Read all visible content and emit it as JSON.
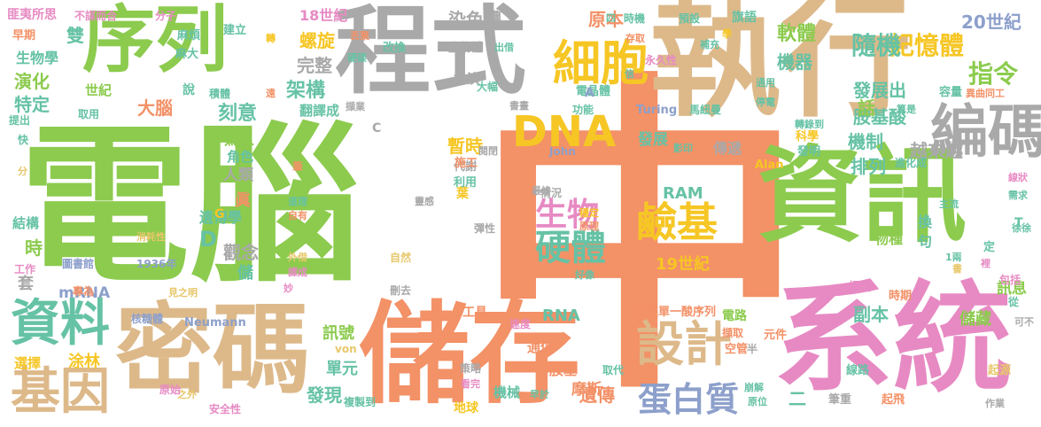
{
  "palette": {
    "green": "#8ccb4e",
    "grey": "#a9a9a9",
    "tan": "#ddb98a",
    "orange": "#f39167",
    "pink": "#e78ac3",
    "yellow": "#f6c624",
    "teal": "#66c2a5",
    "blue": "#8da0cb",
    "lime": "#b5d56a",
    "gold": "#e7c76a"
  },
  "words": [
    {
      "text": "中",
      "color": "orange"
    },
    {
      "text": "電腦",
      "color": "green"
    },
    {
      "text": "執行",
      "color": "tan"
    },
    {
      "text": "程式",
      "color": "grey"
    },
    {
      "text": "序列",
      "color": "green"
    },
    {
      "text": "資訊",
      "color": "green"
    },
    {
      "text": "系統",
      "color": "pink"
    },
    {
      "text": "儲存",
      "color": "orange"
    },
    {
      "text": "密碼",
      "color": "tan"
    },
    {
      "text": "細胞",
      "color": "yellow"
    },
    {
      "text": "編碼",
      "color": "grey"
    },
    {
      "text": "DNA",
      "color": "yellow"
    },
    {
      "text": "資料",
      "color": "teal"
    },
    {
      "text": "基因",
      "color": "tan"
    },
    {
      "text": "設計",
      "color": "tan"
    },
    {
      "text": "記憶體",
      "color": "yellow"
    },
    {
      "text": "生物",
      "color": "pink"
    },
    {
      "text": "鹼基",
      "color": "yellow"
    },
    {
      "text": "硬體",
      "color": "teal"
    },
    {
      "text": "RAM",
      "color": "teal"
    },
    {
      "text": "19世紀",
      "color": "yellow"
    },
    {
      "text": "蛋白質",
      "color": "blue"
    },
    {
      "text": "遺傳",
      "color": "orange"
    },
    {
      "text": "軟體",
      "color": "green"
    },
    {
      "text": "指令",
      "color": "green"
    },
    {
      "text": "隨機",
      "color": "teal"
    },
    {
      "text": "20世紀",
      "color": "blue"
    },
    {
      "text": "螺旋",
      "color": "yellow"
    },
    {
      "text": "架構",
      "color": "teal"
    },
    {
      "text": "完整",
      "color": "grey"
    },
    {
      "text": "染色體",
      "color": "grey"
    },
    {
      "text": "原本",
      "color": "orange"
    },
    {
      "text": "機器",
      "color": "teal"
    },
    {
      "text": "發展出",
      "color": "teal"
    },
    {
      "text": "胺基酸",
      "color": "teal"
    },
    {
      "text": "機制",
      "color": "teal"
    },
    {
      "text": "排列",
      "color": "teal"
    },
    {
      "text": "越來越",
      "color": "grey"
    },
    {
      "text": "發展",
      "color": "teal"
    },
    {
      "text": "暫時",
      "color": "yellow"
    },
    {
      "text": "刻意",
      "color": "teal"
    },
    {
      "text": "大腦",
      "color": "orange"
    },
    {
      "text": "驚人",
      "color": "green"
    },
    {
      "text": "人類",
      "color": "grey"
    },
    {
      "text": "觀念",
      "color": "grey"
    },
    {
      "text": "遺傳學",
      "color": "teal"
    },
    {
      "text": "演化",
      "color": "green"
    },
    {
      "text": "特定",
      "color": "teal"
    },
    {
      "text": "雙",
      "color": "teal"
    },
    {
      "text": "生物學",
      "color": "teal"
    },
    {
      "text": "世紀",
      "color": "green"
    },
    {
      "text": "18世紀",
      "color": "pink"
    },
    {
      "text": "副本",
      "color": "teal"
    },
    {
      "text": "訊號",
      "color": "green"
    },
    {
      "text": "單元",
      "color": "teal"
    },
    {
      "text": "發現",
      "color": "teal"
    },
    {
      "text": "選擇",
      "color": "yellow"
    },
    {
      "text": "涂林",
      "color": "yellow"
    },
    {
      "text": "mRNA",
      "color": "blue"
    },
    {
      "text": "RNA",
      "color": "teal"
    },
    {
      "text": "摩斯",
      "color": "orange"
    },
    {
      "text": "胺基",
      "color": "orange"
    },
    {
      "text": "通信",
      "color": "orange"
    },
    {
      "text": "機械",
      "color": "teal"
    },
    {
      "text": "地球",
      "color": "yellow"
    },
    {
      "text": "結構",
      "color": "teal"
    },
    {
      "text": "時",
      "color": "green"
    },
    {
      "text": "套",
      "color": "grey"
    },
    {
      "text": "D",
      "color": "teal"
    },
    {
      "text": "翻譯成",
      "color": "teal"
    },
    {
      "text": "扮演",
      "color": "grey"
    },
    {
      "text": "儲藏",
      "color": "green"
    },
    {
      "text": "訊息",
      "color": "green"
    },
    {
      "text": "話",
      "color": "green"
    },
    {
      "text": "物種",
      "color": "green"
    },
    {
      "text": "傳遞",
      "color": "grey"
    },
    {
      "text": "角色",
      "color": "teal"
    },
    {
      "text": "眞",
      "color": "orange"
    },
    {
      "text": "儲",
      "color": "teal"
    },
    {
      "text": "二",
      "color": "teal"
    },
    {
      "text": "匪夷所思",
      "color": "pink"
    },
    {
      "text": "早期",
      "color": "orange"
    },
    {
      "text": "麻煩",
      "color": "teal"
    },
    {
      "text": "麻大",
      "color": "teal"
    },
    {
      "text": "說",
      "color": "teal"
    },
    {
      "text": "工具",
      "color": "orange"
    },
    {
      "text": "改裝單一酸序列",
      "color": "orange"
    },
    {
      "text": "電路",
      "color": "green"
    },
    {
      "text": "擷取",
      "color": "orange"
    },
    {
      "text": "空管",
      "color": "orange"
    },
    {
      "text": "元件",
      "color": "orange"
    },
    {
      "text": "取代",
      "color": "teal"
    },
    {
      "text": "線路",
      "color": "teal"
    },
    {
      "text": "筆重",
      "color": "grey"
    },
    {
      "text": "起飛",
      "color": "orange"
    },
    {
      "text": "起源",
      "color": "gold"
    },
    {
      "text": "電晶體",
      "color": "teal"
    },
    {
      "text": "代謝",
      "color": "grey"
    },
    {
      "text": "利用",
      "color": "teal"
    },
    {
      "text": "生物體",
      "color": "grey"
    },
    {
      "text": "改換",
      "color": "teal"
    },
    {
      "text": "功能",
      "color": "teal"
    },
    {
      "text": "Turing",
      "color": "blue"
    },
    {
      "text": "馬紐曼",
      "color": "teal"
    },
    {
      "text": "發明",
      "color": "teal"
    },
    {
      "text": "科學",
      "color": "yellow"
    },
    {
      "text": "時機",
      "color": "teal"
    },
    {
      "text": "預設",
      "color": "teal"
    },
    {
      "text": "旗語",
      "color": "teal"
    },
    {
      "text": "建立",
      "color": "teal"
    },
    {
      "text": "積體",
      "color": "teal"
    },
    {
      "text": "取用",
      "color": "teal"
    },
    {
      "text": "彈性",
      "color": "grey"
    },
    {
      "text": "情況",
      "color": "grey"
    },
    {
      "text": "最終",
      "color": "grey"
    },
    {
      "text": "靈感",
      "color": "grey"
    },
    {
      "text": "自然",
      "color": "gold"
    },
    {
      "text": "刪去",
      "color": "grey"
    },
    {
      "text": "之外",
      "color": "gold"
    },
    {
      "text": "安全性",
      "color": "pink"
    },
    {
      "text": "原始",
      "color": "pink"
    },
    {
      "text": "複製到",
      "color": "teal"
    },
    {
      "text": "策略",
      "color": "grey"
    },
    {
      "text": "看完",
      "color": "pink"
    },
    {
      "text": "早於",
      "color": "teal"
    },
    {
      "text": "核糖體",
      "color": "blue"
    },
    {
      "text": "Neumann",
      "color": "blue"
    },
    {
      "text": "von",
      "color": "gold"
    },
    {
      "text": "速度",
      "color": "pink"
    },
    {
      "text": "John",
      "color": "blue"
    },
    {
      "text": "Alan",
      "color": "yellow"
    },
    {
      "text": "C",
      "color": "grey"
    },
    {
      "text": "A",
      "color": "blue"
    },
    {
      "text": "T",
      "color": "teal"
    },
    {
      "text": "G",
      "color": "yellow"
    },
    {
      "text": "圖書館",
      "color": "blue"
    },
    {
      "text": "專為",
      "color": "orange"
    },
    {
      "text": "1936年",
      "color": "blue"
    },
    {
      "text": "消耗性",
      "color": "gold"
    },
    {
      "text": "工作",
      "color": "pink"
    },
    {
      "text": "見之明",
      "color": "gold"
    },
    {
      "text": "外借",
      "color": "gold"
    },
    {
      "text": "譯成",
      "color": "pink"
    },
    {
      "text": "妙",
      "color": "pink"
    },
    {
      "text": "道理",
      "color": "teal"
    },
    {
      "text": "自有",
      "color": "orange"
    },
    {
      "text": "葉",
      "color": "yellow"
    },
    {
      "text": "施工",
      "color": "orange"
    },
    {
      "text": "穩定",
      "color": "yellow"
    },
    {
      "text": "原理",
      "color": "orange"
    },
    {
      "text": "好像",
      "color": "teal"
    },
    {
      "text": "容量",
      "color": "teal"
    },
    {
      "text": "異曲同工",
      "color": "orange"
    },
    {
      "text": "停電",
      "color": "teal"
    },
    {
      "text": "轉錄到",
      "color": "teal"
    },
    {
      "text": "算是",
      "color": "teal"
    },
    {
      "text": "主流",
      "color": "teal"
    },
    {
      "text": "進化成",
      "color": "teal"
    },
    {
      "text": "通用",
      "color": "teal"
    },
    {
      "text": "影印",
      "color": "teal"
    },
    {
      "text": "換",
      "color": "teal"
    },
    {
      "text": "句",
      "color": "teal"
    },
    {
      "text": "定",
      "color": "teal"
    },
    {
      "text": "提高",
      "color": "pink"
    },
    {
      "text": "時期",
      "color": "orange"
    },
    {
      "text": "包括",
      "color": "pink"
    },
    {
      "text": "從",
      "color": "teal"
    },
    {
      "text": "可不",
      "color": "grey"
    },
    {
      "text": "線狀",
      "color": "pink"
    },
    {
      "text": "需求",
      "color": "teal"
    },
    {
      "text": "徐徐",
      "color": "teal"
    },
    {
      "text": "作業",
      "color": "grey"
    },
    {
      "text": "原位",
      "color": "teal"
    },
    {
      "text": "崩解",
      "color": "teal"
    },
    {
      "text": "半",
      "color": "grey"
    },
    {
      "text": "1兩",
      "color": "teal"
    },
    {
      "text": "書",
      "color": "gold"
    },
    {
      "text": "裡",
      "color": "pink"
    },
    {
      "text": "不謀而合",
      "color": "pink"
    },
    {
      "text": "分子",
      "color": "pink"
    },
    {
      "text": "學",
      "color": "yellow"
    },
    {
      "text": "補充",
      "color": "teal"
    },
    {
      "text": "永久性",
      "color": "pink"
    },
    {
      "text": "存取",
      "color": "orange"
    },
    {
      "text": "出借",
      "color": "teal"
    },
    {
      "text": "大幅",
      "color": "teal"
    },
    {
      "text": "書畫",
      "color": "grey"
    },
    {
      "text": "擷業",
      "color": "grey"
    },
    {
      "text": "硬碟",
      "color": "teal"
    },
    {
      "text": "丟棄",
      "color": "orange"
    },
    {
      "text": "轉",
      "color": "yellow"
    },
    {
      "text": "遠",
      "color": "orange"
    },
    {
      "text": "提出",
      "color": "teal"
    },
    {
      "text": "快",
      "color": "teal"
    },
    {
      "text": "分",
      "color": "gold"
    },
    {
      "text": "閱閉",
      "color": "grey"
    },
    {
      "text": "四",
      "color": "teal"
    },
    {
      "text": "信",
      "color": "teal"
    },
    {
      "text": "筆",
      "color": "orange"
    }
  ]
}
